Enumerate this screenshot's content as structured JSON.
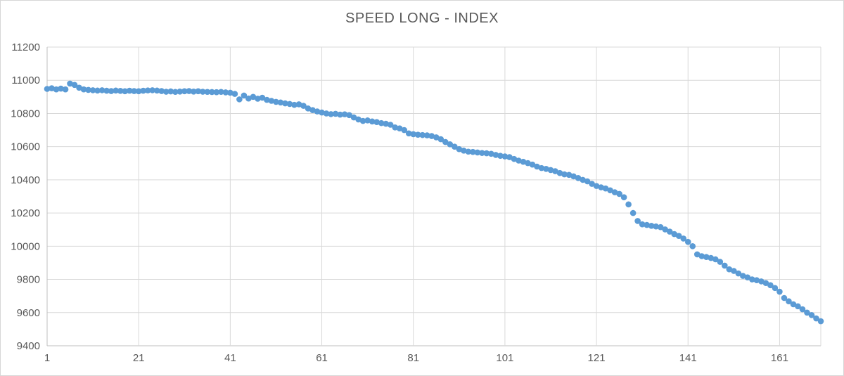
{
  "chart_data": {
    "type": "scatter",
    "title": "SPEED LONG - INDEX",
    "xlabel": "",
    "ylabel": "",
    "x_ticks": [
      1,
      21,
      41,
      61,
      81,
      101,
      121,
      141,
      161
    ],
    "xlim": [
      1,
      170
    ],
    "ylim": [
      9400,
      11200
    ],
    "y_tick_step": 200,
    "grid": true,
    "legend": false,
    "marker_color": "#5B9BD5",
    "gridline_color": "#d9d9d9",
    "axis_line_color": "#bfbfbf",
    "text_color": "#595959",
    "border_color": "#d7d7d7",
    "series": [
      {
        "name": "SPEED LONG - INDEX",
        "x_start": 1,
        "values": [
          10948,
          10952,
          10945,
          10950,
          10945,
          10980,
          10972,
          10955,
          10945,
          10942,
          10940,
          10938,
          10940,
          10937,
          10935,
          10938,
          10936,
          10934,
          10937,
          10935,
          10934,
          10937,
          10939,
          10940,
          10938,
          10935,
          10931,
          10933,
          10930,
          10932,
          10934,
          10935,
          10932,
          10934,
          10931,
          10930,
          10929,
          10928,
          10930,
          10927,
          10925,
          10918,
          10885,
          10908,
          10890,
          10900,
          10889,
          10895,
          10882,
          10876,
          10870,
          10866,
          10861,
          10857,
          10852,
          10855,
          10846,
          10830,
          10820,
          10812,
          10806,
          10800,
          10796,
          10798,
          10793,
          10795,
          10790,
          10776,
          10764,
          10755,
          10758,
          10752,
          10748,
          10742,
          10738,
          10732,
          10716,
          10710,
          10700,
          10680,
          10675,
          10672,
          10670,
          10668,
          10664,
          10656,
          10645,
          10628,
          10614,
          10600,
          10585,
          10576,
          10570,
          10568,
          10565,
          10562,
          10560,
          10557,
          10550,
          10545,
          10541,
          10537,
          10526,
          10516,
          10509,
          10501,
          10492,
          10480,
          10471,
          10466,
          10459,
          10452,
          10441,
          10433,
          10430,
          10421,
          10411,
          10400,
          10391,
          10376,
          10363,
          10355,
          10348,
          10337,
          10325,
          10315,
          10295,
          10252,
          10200,
          10152,
          10132,
          10128,
          10123,
          10119,
          10115,
          10101,
          10088,
          10073,
          10062,
          10046,
          10026,
          10000,
          9951,
          9940,
          9935,
          9929,
          9921,
          9906,
          9883,
          9861,
          9851,
          9836,
          9821,
          9812,
          9800,
          9795,
          9788,
          9778,
          9765,
          9748,
          9726,
          9688,
          9668,
          9650,
          9638,
          9620,
          9600,
          9585,
          9565,
          9548
        ]
      }
    ]
  }
}
